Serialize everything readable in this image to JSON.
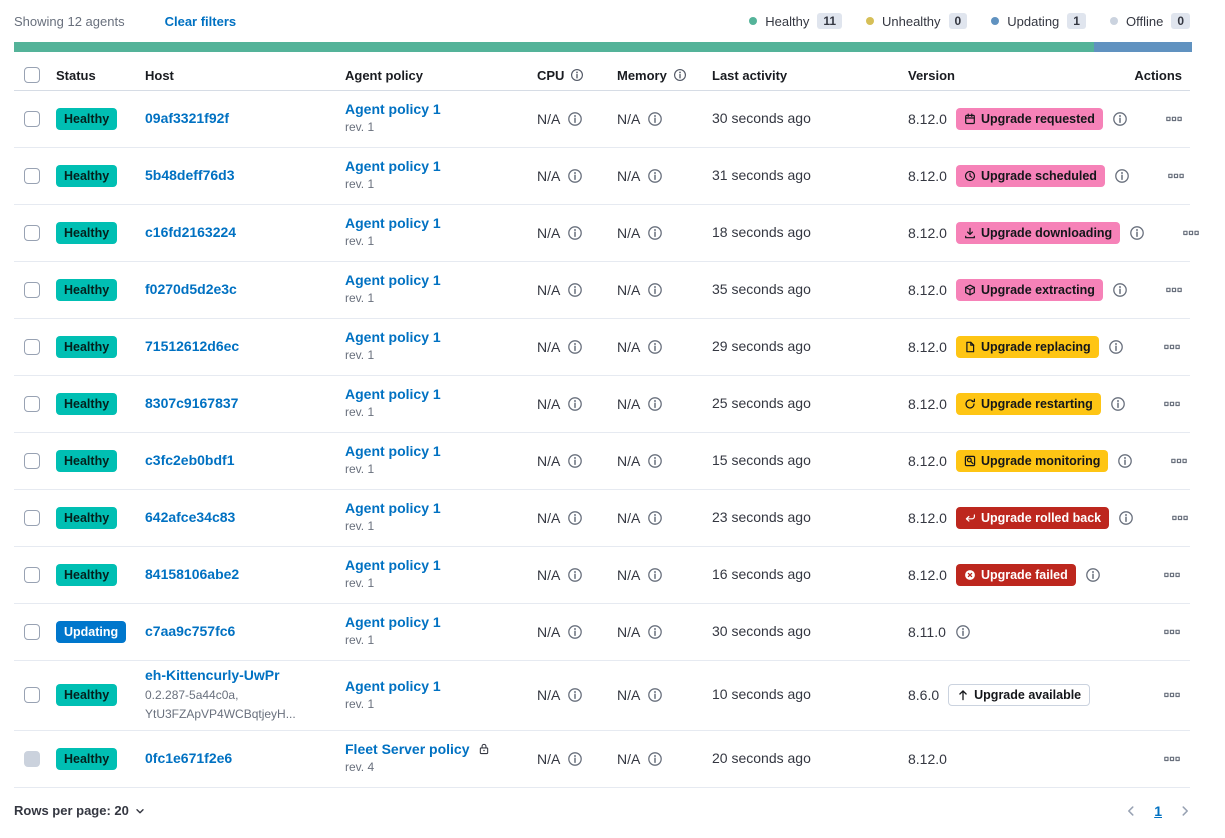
{
  "toolbar": {
    "showing_text": "Showing 12 agents",
    "clear_filters_label": "Clear filters"
  },
  "legend": {
    "items": [
      {
        "label": "Healthy",
        "count": "11",
        "color": "#54B399"
      },
      {
        "label": "Unhealthy",
        "count": "0",
        "color": "#D6BF57"
      },
      {
        "label": "Updating",
        "count": "1",
        "color": "#6092C0"
      },
      {
        "label": "Offline",
        "count": "0",
        "color": "#CBD3DF"
      }
    ]
  },
  "health_bar": {
    "segments": [
      {
        "status": "healthy",
        "color": "#54B399",
        "fraction": 0.9167
      },
      {
        "status": "updating",
        "color": "#6092C0",
        "fraction": 0.0833
      }
    ]
  },
  "table": {
    "columns": [
      {
        "type": "checkbox",
        "label": ""
      },
      {
        "label": "Status"
      },
      {
        "label": "Host"
      },
      {
        "label": "Agent policy"
      },
      {
        "label": "CPU",
        "info_icon": true
      },
      {
        "label": "Memory",
        "info_icon": true
      },
      {
        "label": "Last activity"
      },
      {
        "label": "Version"
      },
      {
        "label": "Actions",
        "align": "right"
      }
    ],
    "rows": [
      {
        "status": "Healthy",
        "status_variant": "healthy",
        "checkbox_disabled": false,
        "host": "09af3321f92f",
        "host_sub": [],
        "policy": "Agent policy 1",
        "policy_rev": "rev. 1",
        "policy_locked": false,
        "cpu": "N/A",
        "memory": "N/A",
        "last_activity": "30 seconds ago",
        "version": "8.12.0",
        "upgrade": {
          "label": "Upgrade requested",
          "icon": "calendar-icon",
          "variant": "pink"
        },
        "version_info": true
      },
      {
        "status": "Healthy",
        "status_variant": "healthy",
        "checkbox_disabled": false,
        "host": "5b48deff76d3",
        "host_sub": [],
        "policy": "Agent policy 1",
        "policy_rev": "rev. 1",
        "policy_locked": false,
        "cpu": "N/A",
        "memory": "N/A",
        "last_activity": "31 seconds ago",
        "version": "8.12.0",
        "upgrade": {
          "label": "Upgrade scheduled",
          "icon": "clock-icon",
          "variant": "pink"
        },
        "version_info": true
      },
      {
        "status": "Healthy",
        "status_variant": "healthy",
        "checkbox_disabled": false,
        "host": "c16fd2163224",
        "host_sub": [],
        "policy": "Agent policy 1",
        "policy_rev": "rev. 1",
        "policy_locked": false,
        "cpu": "N/A",
        "memory": "N/A",
        "last_activity": "18 seconds ago",
        "version": "8.12.0",
        "upgrade": {
          "label": "Upgrade downloading",
          "icon": "download-icon",
          "variant": "pink"
        },
        "version_info": true
      },
      {
        "status": "Healthy",
        "status_variant": "healthy",
        "checkbox_disabled": false,
        "host": "f0270d5d2e3c",
        "host_sub": [],
        "policy": "Agent policy 1",
        "policy_rev": "rev. 1",
        "policy_locked": false,
        "cpu": "N/A",
        "memory": "N/A",
        "last_activity": "35 seconds ago",
        "version": "8.12.0",
        "upgrade": {
          "label": "Upgrade extracting",
          "icon": "package-icon",
          "variant": "pink"
        },
        "version_info": true
      },
      {
        "status": "Healthy",
        "status_variant": "healthy",
        "checkbox_disabled": false,
        "host": "71512612d6ec",
        "host_sub": [],
        "policy": "Agent policy 1",
        "policy_rev": "rev. 1",
        "policy_locked": false,
        "cpu": "N/A",
        "memory": "N/A",
        "last_activity": "29 seconds ago",
        "version": "8.12.0",
        "upgrade": {
          "label": "Upgrade replacing",
          "icon": "document-icon",
          "variant": "warning"
        },
        "version_info": true
      },
      {
        "status": "Healthy",
        "status_variant": "healthy",
        "checkbox_disabled": false,
        "host": "8307c9167837",
        "host_sub": [],
        "policy": "Agent policy 1",
        "policy_rev": "rev. 1",
        "policy_locked": false,
        "cpu": "N/A",
        "memory": "N/A",
        "last_activity": "25 seconds ago",
        "version": "8.12.0",
        "upgrade": {
          "label": "Upgrade restarting",
          "icon": "refresh-icon",
          "variant": "warning"
        },
        "version_info": true
      },
      {
        "status": "Healthy",
        "status_variant": "healthy",
        "checkbox_disabled": false,
        "host": "c3fc2eb0bdf1",
        "host_sub": [],
        "policy": "Agent policy 1",
        "policy_rev": "rev. 1",
        "policy_locked": false,
        "cpu": "N/A",
        "memory": "N/A",
        "last_activity": "15 seconds ago",
        "version": "8.12.0",
        "upgrade": {
          "label": "Upgrade monitoring",
          "icon": "inspect-icon",
          "variant": "warning"
        },
        "version_info": true
      },
      {
        "status": "Healthy",
        "status_variant": "healthy",
        "checkbox_disabled": false,
        "host": "642afce34c83",
        "host_sub": [],
        "policy": "Agent policy 1",
        "policy_rev": "rev. 1",
        "policy_locked": false,
        "cpu": "N/A",
        "memory": "N/A",
        "last_activity": "23 seconds ago",
        "version": "8.12.0",
        "upgrade": {
          "label": "Upgrade rolled back",
          "icon": "return-icon",
          "variant": "danger"
        },
        "version_info": true
      },
      {
        "status": "Healthy",
        "status_variant": "healthy",
        "checkbox_disabled": false,
        "host": "84158106abe2",
        "host_sub": [],
        "policy": "Agent policy 1",
        "policy_rev": "rev. 1",
        "policy_locked": false,
        "cpu": "N/A",
        "memory": "N/A",
        "last_activity": "16 seconds ago",
        "version": "8.12.0",
        "upgrade": {
          "label": "Upgrade failed",
          "icon": "error-icon",
          "variant": "danger"
        },
        "version_info": true
      },
      {
        "status": "Updating",
        "status_variant": "updating",
        "checkbox_disabled": false,
        "host": "c7aa9c757fc6",
        "host_sub": [],
        "policy": "Agent policy 1",
        "policy_rev": "rev. 1",
        "policy_locked": false,
        "cpu": "N/A",
        "memory": "N/A",
        "last_activity": "30 seconds ago",
        "version": "8.11.0",
        "upgrade": null,
        "version_info": true
      },
      {
        "status": "Healthy",
        "status_variant": "healthy",
        "checkbox_disabled": false,
        "host": "eh-Kittencurly-UwPr",
        "host_sub": [
          "0.2.287-5a44c0a,",
          "YtU3FZApVP4WCBqtjeyH..."
        ],
        "policy": "Agent policy 1",
        "policy_rev": "rev. 1",
        "policy_locked": false,
        "cpu": "N/A",
        "memory": "N/A",
        "last_activity": "10 seconds ago",
        "version": "8.6.0",
        "upgrade": {
          "label": "Upgrade available",
          "icon": "arrow-up-icon",
          "variant": "outline"
        },
        "version_info": false
      },
      {
        "status": "Healthy",
        "status_variant": "healthy",
        "checkbox_disabled": true,
        "host": "0fc1e671f2e6",
        "host_sub": [],
        "policy": "Fleet Server policy",
        "policy_rev": "rev. 4",
        "policy_locked": true,
        "cpu": "N/A",
        "memory": "N/A",
        "last_activity": "20 seconds ago",
        "version": "8.12.0",
        "upgrade": null,
        "version_info": false
      }
    ]
  },
  "footer": {
    "rows_per_page_label": "Rows per page: 20",
    "page": "1"
  },
  "colors": {
    "link": "#0071C2",
    "healthy_badge": "#00BFB3",
    "updating_badge": "#0077CC",
    "pink_badge": "#F682B8",
    "warning_badge": "#FEC514",
    "danger_badge": "#BD271E",
    "text": "#343741",
    "subdued_text": "#69707D"
  }
}
